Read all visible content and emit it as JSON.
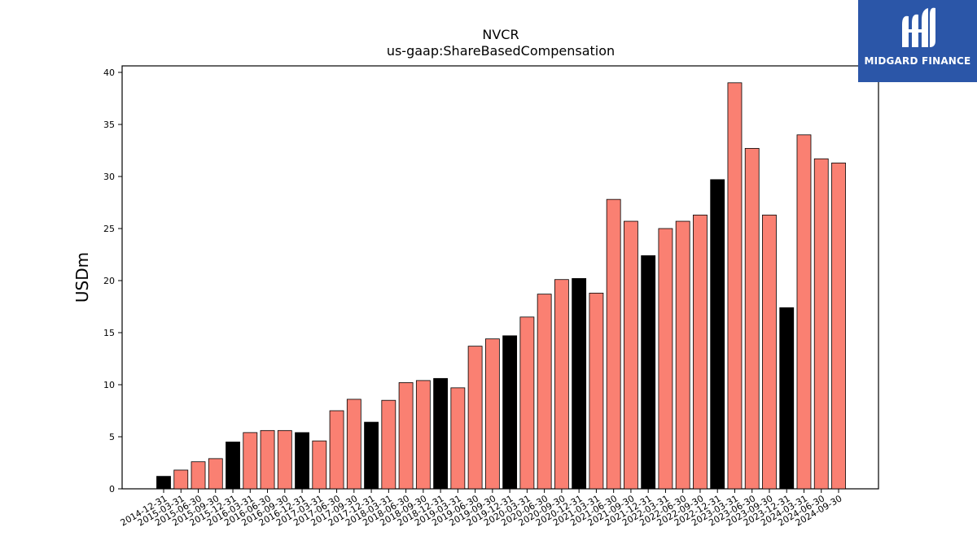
{
  "chart_data": {
    "type": "bar",
    "title": "NVCR",
    "subtitle": "us-gaap:ShareBasedCompensation",
    "xlabel": "",
    "ylabel": "USDm",
    "ylim": [
      0,
      40
    ],
    "yticks": [
      0,
      5,
      10,
      15,
      20,
      25,
      30,
      35,
      40
    ],
    "grid": false,
    "categories": [
      "2014-12-31",
      "2015-03-31",
      "2015-06-30",
      "2015-09-30",
      "2015-12-31",
      "2016-03-31",
      "2016-06-30",
      "2016-09-30",
      "2016-12-31",
      "2017-03-31",
      "2017-06-30",
      "2017-09-30",
      "2017-12-31",
      "2018-03-31",
      "2018-06-30",
      "2018-09-30",
      "2018-12-31",
      "2019-03-31",
      "2019-06-30",
      "2019-09-30",
      "2019-12-31",
      "2020-03-31",
      "2020-06-30",
      "2020-09-30",
      "2020-12-31",
      "2021-03-31",
      "2021-06-30",
      "2021-09-30",
      "2021-12-31",
      "2022-03-31",
      "2022-06-30",
      "2022-09-30",
      "2022-12-31",
      "2023-03-31",
      "2023-06-30",
      "2023-09-30",
      "2023-12-31",
      "2024-03-31",
      "2024-06-30",
      "2024-09-30"
    ],
    "values": [
      1.2,
      1.8,
      2.6,
      2.9,
      4.5,
      5.4,
      5.6,
      5.6,
      5.4,
      4.6,
      7.5,
      8.6,
      6.4,
      8.5,
      10.2,
      10.4,
      10.6,
      9.7,
      13.7,
      14.4,
      14.7,
      16.5,
      18.7,
      20.1,
      20.2,
      18.8,
      27.8,
      25.7,
      22.4,
      25.0,
      25.7,
      26.3,
      29.7,
      39.0,
      32.7,
      26.3,
      17.4,
      34.0,
      31.7,
      31.3
    ],
    "colors": {
      "quarter": "#fa8072",
      "year_end": "#000000",
      "edge": "#000000"
    }
  },
  "logo": {
    "text": "MIDGARD FINANCE",
    "background": "#2b56a8"
  }
}
